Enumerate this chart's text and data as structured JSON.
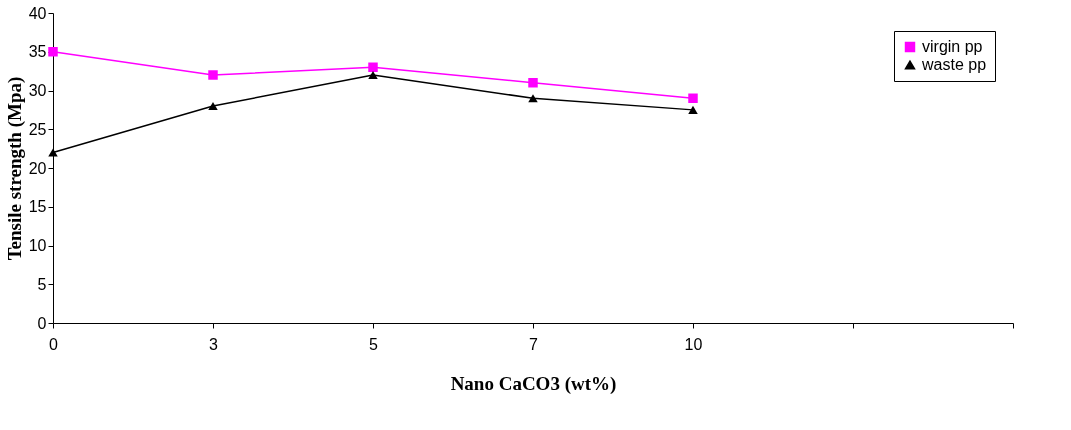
{
  "chart_data": {
    "type": "line",
    "xlabel": "Nano CaCO3  (wt%)",
    "ylabel": "Tensile strength (Mpa)",
    "categories": [
      "0",
      "3",
      "5",
      "7",
      "10",
      null,
      null
    ],
    "series": [
      {
        "name": "virgin pp",
        "color": "#ff00ff",
        "marker": "square",
        "values": [
          35,
          32,
          33,
          31,
          29,
          null,
          null
        ]
      },
      {
        "name": "waste pp",
        "color": "#000000",
        "marker": "triangle",
        "values": [
          22,
          28,
          32,
          29,
          27.5,
          null,
          null
        ]
      }
    ],
    "ylim": [
      0,
      40
    ],
    "yticks": [
      0,
      5,
      10,
      15,
      20,
      25,
      30,
      35,
      40
    ],
    "grid": false,
    "legend": "top right",
    "line_style": "solid"
  }
}
